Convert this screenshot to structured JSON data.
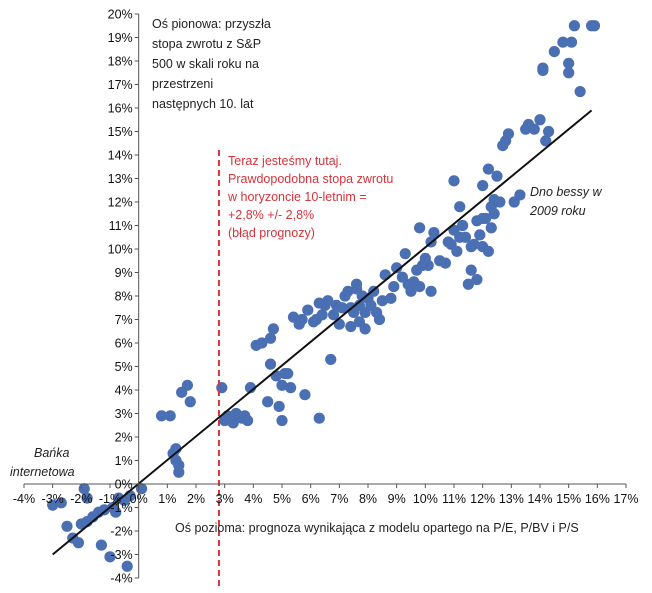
{
  "chart_data": {
    "type": "scatter",
    "title": "",
    "xlabel": "Oś pozioma: prognoza wynikająca z modelu opartego na P/E, P/BV i P/S",
    "ylabel_lines": [
      "Oś pionowa: przyszła",
      "stopa zwrotu z S&P",
      "500 w skali roku na",
      "przestrzeni",
      "następnych 10. lat"
    ],
    "xlim": [
      -4,
      17
    ],
    "ylim": [
      -4,
      20
    ],
    "x_ticks": [
      -4,
      -3,
      -2,
      -1,
      0,
      1,
      2,
      3,
      4,
      5,
      6,
      7,
      8,
      9,
      10,
      11,
      12,
      13,
      14,
      15,
      16,
      17
    ],
    "y_ticks": [
      -4,
      -3,
      -2,
      -1,
      0,
      1,
      2,
      3,
      4,
      5,
      6,
      7,
      8,
      9,
      10,
      11,
      12,
      13,
      14,
      15,
      16,
      17,
      18,
      19,
      20
    ],
    "x_tick_labels": [
      "-4%",
      "-3%",
      "-2%",
      "-1%",
      "0%",
      "1%",
      "2%",
      "3%",
      "4%",
      "5%",
      "6%",
      "7%",
      "8%",
      "9%",
      "10%",
      "11%",
      "12%",
      "13%",
      "14%",
      "15%",
      "16%",
      "17%"
    ],
    "y_tick_labels": [
      "-4%",
      "-3%",
      "-2%",
      "-1%",
      "0%",
      "1%",
      "2%",
      "3%",
      "4%",
      "5%",
      "6%",
      "7%",
      "8%",
      "9%",
      "10%",
      "11%",
      "12%",
      "13%",
      "14%",
      "15%",
      "16%",
      "17%",
      "18%",
      "19%",
      "20%"
    ],
    "grid": false,
    "series": [
      {
        "name": "observations",
        "color": "#4a6fb3",
        "points": [
          [
            -3.0,
            -0.9
          ],
          [
            -2.7,
            -0.8
          ],
          [
            -2.5,
            -1.8
          ],
          [
            -2.3,
            -2.3
          ],
          [
            -2.1,
            -2.5
          ],
          [
            -2.0,
            -1.7
          ],
          [
            -1.9,
            -0.2
          ],
          [
            -1.8,
            -1.6
          ],
          [
            -1.8,
            -0.6
          ],
          [
            -1.6,
            -1.4
          ],
          [
            -1.4,
            -1.2
          ],
          [
            -1.3,
            -2.6
          ],
          [
            -1.2,
            -1.1
          ],
          [
            -1.0,
            -3.1
          ],
          [
            -0.9,
            -1.0
          ],
          [
            -0.8,
            -1.2
          ],
          [
            -0.7,
            -0.6
          ],
          [
            -0.5,
            -0.7
          ],
          [
            -0.4,
            -3.5
          ],
          [
            -0.3,
            -0.5
          ],
          [
            0.1,
            -0.2
          ],
          [
            0.8,
            2.9
          ],
          [
            1.1,
            2.9
          ],
          [
            1.2,
            1.3
          ],
          [
            1.3,
            1.0
          ],
          [
            1.3,
            1.5
          ],
          [
            1.4,
            0.8
          ],
          [
            1.4,
            0.5
          ],
          [
            1.5,
            3.9
          ],
          [
            1.8,
            3.5
          ],
          [
            1.7,
            4.2
          ],
          [
            2.9,
            4.1
          ],
          [
            3.0,
            2.7
          ],
          [
            3.1,
            2.9
          ],
          [
            3.2,
            2.7
          ],
          [
            3.3,
            2.8
          ],
          [
            3.4,
            3.0
          ],
          [
            3.6,
            2.8
          ],
          [
            3.7,
            2.9
          ],
          [
            3.9,
            4.1
          ],
          [
            3.3,
            2.6
          ],
          [
            3.8,
            2.7
          ],
          [
            4.1,
            5.9
          ],
          [
            4.3,
            6.0
          ],
          [
            4.5,
            3.5
          ],
          [
            4.6,
            6.2
          ],
          [
            4.7,
            6.6
          ],
          [
            4.6,
            5.1
          ],
          [
            4.8,
            4.6
          ],
          [
            4.9,
            3.3
          ],
          [
            5.0,
            4.2
          ],
          [
            5.1,
            4.7
          ],
          [
            5.0,
            2.7
          ],
          [
            5.3,
            4.1
          ],
          [
            5.2,
            4.7
          ],
          [
            5.4,
            7.1
          ],
          [
            5.6,
            6.8
          ],
          [
            5.7,
            7.0
          ],
          [
            5.8,
            3.8
          ],
          [
            5.9,
            7.4
          ],
          [
            6.1,
            6.9
          ],
          [
            6.2,
            7.0
          ],
          [
            6.3,
            2.8
          ],
          [
            6.3,
            7.7
          ],
          [
            6.4,
            7.2
          ],
          [
            6.5,
            7.6
          ],
          [
            6.6,
            7.8
          ],
          [
            6.7,
            5.3
          ],
          [
            6.8,
            7.2
          ],
          [
            6.9,
            7.6
          ],
          [
            7.0,
            6.8
          ],
          [
            7.1,
            7.5
          ],
          [
            7.2,
            8.0
          ],
          [
            7.3,
            8.2
          ],
          [
            7.4,
            7.5
          ],
          [
            7.5,
            7.3
          ],
          [
            7.6,
            8.5
          ],
          [
            7.7,
            6.9
          ],
          [
            7.6,
            8.3
          ],
          [
            7.7,
            7.6
          ],
          [
            7.8,
            8.0
          ],
          [
            7.9,
            7.3
          ],
          [
            8.0,
            7.9
          ],
          [
            8.1,
            7.6
          ],
          [
            8.2,
            8.2
          ],
          [
            8.3,
            7.3
          ],
          [
            8.4,
            7.0
          ],
          [
            8.5,
            7.8
          ],
          [
            7.9,
            6.6
          ],
          [
            7.4,
            6.7
          ],
          [
            8.6,
            8.9
          ],
          [
            8.8,
            7.9
          ],
          [
            8.9,
            8.4
          ],
          [
            9.0,
            9.2
          ],
          [
            9.2,
            8.8
          ],
          [
            9.3,
            9.8
          ],
          [
            9.4,
            8.5
          ],
          [
            9.5,
            8.2
          ],
          [
            9.6,
            8.6
          ],
          [
            9.7,
            9.1
          ],
          [
            9.8,
            8.4
          ],
          [
            9.8,
            10.9
          ],
          [
            9.9,
            9.3
          ],
          [
            10.0,
            9.6
          ],
          [
            10.1,
            9.3
          ],
          [
            10.2,
            10.3
          ],
          [
            10.2,
            8.2
          ],
          [
            10.3,
            10.7
          ],
          [
            10.5,
            9.5
          ],
          [
            10.7,
            9.4
          ],
          [
            10.8,
            10.3
          ],
          [
            10.9,
            10.2
          ],
          [
            11.0,
            10.8
          ],
          [
            11.1,
            9.9
          ],
          [
            11.2,
            10.5
          ],
          [
            11.3,
            11.0
          ],
          [
            11.0,
            12.9
          ],
          [
            11.2,
            11.8
          ],
          [
            11.4,
            10.5
          ],
          [
            11.5,
            8.5
          ],
          [
            11.6,
            10.1
          ],
          [
            11.6,
            9.1
          ],
          [
            11.7,
            10.2
          ],
          [
            11.8,
            11.2
          ],
          [
            11.8,
            8.7
          ],
          [
            11.9,
            10.6
          ],
          [
            12.0,
            11.3
          ],
          [
            12.0,
            10.1
          ],
          [
            12.0,
            12.7
          ],
          [
            12.1,
            11.3
          ],
          [
            12.2,
            13.4
          ],
          [
            12.2,
            9.9
          ],
          [
            12.3,
            11.8
          ],
          [
            12.3,
            10.9
          ],
          [
            12.4,
            12.1
          ],
          [
            12.5,
            13.1
          ],
          [
            12.4,
            11.5
          ],
          [
            12.6,
            12.0
          ],
          [
            12.7,
            14.4
          ],
          [
            12.8,
            14.6
          ],
          [
            12.9,
            14.9
          ],
          [
            13.1,
            12.0
          ],
          [
            13.3,
            12.3
          ],
          [
            13.5,
            15.1
          ],
          [
            13.6,
            15.3
          ],
          [
            13.8,
            15.1
          ],
          [
            14.0,
            15.5
          ],
          [
            14.2,
            14.6
          ],
          [
            14.3,
            15.0
          ],
          [
            14.1,
            17.7
          ],
          [
            14.1,
            17.6
          ],
          [
            14.5,
            18.4
          ],
          [
            14.8,
            18.8
          ],
          [
            15.0,
            17.9
          ],
          [
            15.0,
            17.5
          ],
          [
            15.1,
            18.8
          ],
          [
            15.2,
            19.5
          ],
          [
            15.4,
            16.7
          ],
          [
            15.8,
            19.5
          ],
          [
            15.9,
            19.5
          ]
        ]
      }
    ],
    "trend_line": {
      "from": [
        -3.0,
        -3.0
      ],
      "to": [
        15.8,
        15.9
      ],
      "color": "#111111"
    },
    "current_marker": {
      "x": 2.8,
      "color": "#d6333b"
    },
    "annotations": {
      "current_lines": [
        "Teraz jesteśmy tutaj.",
        "Prawdopodobna stopa zwrotu",
        "w horyzoncie 10-letnim =",
        "+2,8% +/- 2,8%",
        "(błąd prognozy)"
      ],
      "bottom_lines": [
        "Dno bessy w",
        "2009 roku"
      ],
      "bubble_lines": [
        "Bańka",
        "internetowa"
      ]
    }
  }
}
